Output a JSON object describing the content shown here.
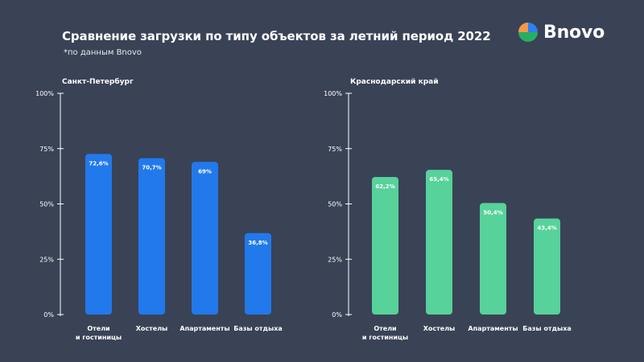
{
  "header": {
    "title": "Сравнение загрузки по типу объектов за летний период 2022",
    "subtitle": "*по данным Bnovo"
  },
  "logo": {
    "text": "Bnovo",
    "colors": [
      "#2f80ed",
      "#f2994a",
      "#27ae60"
    ]
  },
  "chart_data": [
    {
      "type": "bar",
      "title": "Санкт-Петербург",
      "categories": [
        [
          "Отели",
          "и гостиницы"
        ],
        [
          "Хостелы"
        ],
        [
          "Апартаменты"
        ],
        [
          "Базы отдыха"
        ]
      ],
      "values": [
        72.6,
        70.7,
        69,
        36.8
      ],
      "value_labels": [
        "72,6%",
        "70,7%",
        "69%",
        "36,8%"
      ],
      "ylim": [
        0,
        100
      ],
      "yticks": [
        0,
        25,
        50,
        75,
        100
      ],
      "ytick_labels": [
        "0%",
        "25%",
        "50%",
        "75%",
        "100%"
      ],
      "color": "#2279eb",
      "grid": false
    },
    {
      "type": "bar",
      "title": "Краснодарский край",
      "categories": [
        [
          "Отели",
          "и гостиницы"
        ],
        [
          "Хостелы"
        ],
        [
          "Апартаменты"
        ],
        [
          "Базы отдыха"
        ]
      ],
      "values": [
        62.2,
        65.4,
        50.4,
        43.4
      ],
      "value_labels": [
        "62,2%",
        "65,4%",
        "50,4%",
        "43,4%"
      ],
      "ylim": [
        0,
        100
      ],
      "yticks": [
        0,
        25,
        50,
        75,
        100
      ],
      "ytick_labels": [
        "0%",
        "25%",
        "50%",
        "75%",
        "100%"
      ],
      "color": "#56d29a",
      "grid": false
    }
  ]
}
